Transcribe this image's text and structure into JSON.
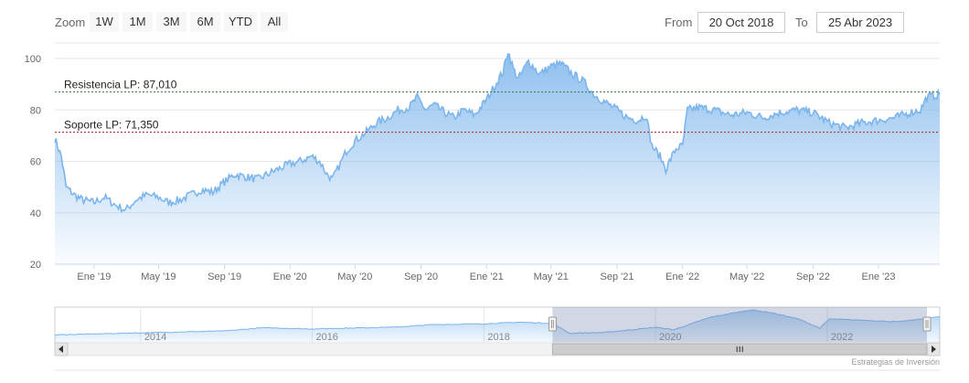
{
  "range_selector": {
    "zoom_label": "Zoom",
    "buttons": [
      "1W",
      "1M",
      "3M",
      "6M",
      "YTD",
      "All"
    ],
    "from_label": "From",
    "from_value": "20 Oct 2018",
    "to_label": "To",
    "to_value": "25 Abr 2023"
  },
  "credits": "Estrategias de Inversión",
  "colors": {
    "series_line": "#7cb5ec",
    "area_top": "#7cb5ec",
    "resistance_line": "#2e7d32",
    "support_line": "#b71c1c",
    "grid": "#e6e6e6"
  },
  "chart_data": {
    "type": "area",
    "x_start": "2018-10-20",
    "x_end": "2023-04-25",
    "ylim": [
      20,
      105
    ],
    "yticks": [
      20,
      40,
      60,
      80,
      100
    ],
    "x_tick_labels": [
      {
        "date": "2019-01-01",
        "label": "Ene '19"
      },
      {
        "date": "2019-05-01",
        "label": "May '19"
      },
      {
        "date": "2019-09-01",
        "label": "Sep '19"
      },
      {
        "date": "2020-01-01",
        "label": "Ene '20"
      },
      {
        "date": "2020-05-01",
        "label": "May '20"
      },
      {
        "date": "2020-09-01",
        "label": "Sep '20"
      },
      {
        "date": "2021-01-01",
        "label": "Ene '21"
      },
      {
        "date": "2021-05-01",
        "label": "May '21"
      },
      {
        "date": "2021-09-01",
        "label": "Sep '21"
      },
      {
        "date": "2022-01-01",
        "label": "Ene '22"
      },
      {
        "date": "2022-05-01",
        "label": "May '22"
      },
      {
        "date": "2022-09-01",
        "label": "Sep '22"
      },
      {
        "date": "2023-01-01",
        "label": "Ene '23"
      }
    ],
    "series": [
      {
        "points": [
          [
            "2018-10-20",
            69
          ],
          [
            "2018-11-01",
            62
          ],
          [
            "2018-11-10",
            50
          ],
          [
            "2018-11-25",
            47
          ],
          [
            "2018-12-10",
            45
          ],
          [
            "2019-01-01",
            44
          ],
          [
            "2019-01-20",
            46
          ],
          [
            "2019-02-10",
            43
          ],
          [
            "2019-03-01",
            41
          ],
          [
            "2019-03-20",
            45
          ],
          [
            "2019-04-10",
            47
          ],
          [
            "2019-05-01",
            46
          ],
          [
            "2019-05-20",
            44
          ],
          [
            "2019-06-10",
            45
          ],
          [
            "2019-07-01",
            47
          ],
          [
            "2019-07-20",
            49
          ],
          [
            "2019-08-10",
            48
          ],
          [
            "2019-09-01",
            52
          ],
          [
            "2019-09-20",
            55
          ],
          [
            "2019-10-10",
            54
          ],
          [
            "2019-11-01",
            53
          ],
          [
            "2019-11-20",
            55
          ],
          [
            "2019-12-10",
            57
          ],
          [
            "2020-01-01",
            59
          ],
          [
            "2020-01-20",
            60
          ],
          [
            "2020-02-10",
            62
          ],
          [
            "2020-02-25",
            60
          ],
          [
            "2020-03-10",
            55
          ],
          [
            "2020-03-20",
            53
          ],
          [
            "2020-04-01",
            58
          ],
          [
            "2020-04-15",
            64
          ],
          [
            "2020-05-01",
            68
          ],
          [
            "2020-05-20",
            71
          ],
          [
            "2020-06-10",
            75
          ],
          [
            "2020-07-01",
            77
          ],
          [
            "2020-07-20",
            80
          ],
          [
            "2020-08-10",
            81
          ],
          [
            "2020-08-25",
            85
          ],
          [
            "2020-09-10",
            80
          ],
          [
            "2020-09-25",
            82
          ],
          [
            "2020-10-15",
            79
          ],
          [
            "2020-11-01",
            77
          ],
          [
            "2020-11-20",
            80
          ],
          [
            "2020-12-10",
            78
          ],
          [
            "2021-01-01",
            84
          ],
          [
            "2021-01-15",
            89
          ],
          [
            "2021-02-01",
            95
          ],
          [
            "2021-02-10",
            103
          ],
          [
            "2021-02-20",
            96
          ],
          [
            "2021-03-01",
            92
          ],
          [
            "2021-03-20",
            99
          ],
          [
            "2021-04-10",
            94
          ],
          [
            "2021-05-01",
            97
          ],
          [
            "2021-05-20",
            98
          ],
          [
            "2021-06-10",
            94
          ],
          [
            "2021-07-01",
            91
          ],
          [
            "2021-07-20",
            86
          ],
          [
            "2021-08-10",
            83
          ],
          [
            "2021-09-01",
            80
          ],
          [
            "2021-09-20",
            77
          ],
          [
            "2021-10-10",
            76
          ],
          [
            "2021-10-25",
            78
          ],
          [
            "2021-11-05",
            66
          ],
          [
            "2021-11-20",
            62
          ],
          [
            "2021-12-01",
            57
          ],
          [
            "2021-12-10",
            61
          ],
          [
            "2021-12-20",
            65
          ],
          [
            "2022-01-01",
            66
          ],
          [
            "2022-01-10",
            80
          ],
          [
            "2022-02-01",
            81
          ],
          [
            "2022-03-01",
            80
          ],
          [
            "2022-04-01",
            78
          ],
          [
            "2022-05-01",
            79
          ],
          [
            "2022-06-01",
            77
          ],
          [
            "2022-07-01",
            79
          ],
          [
            "2022-08-01",
            80
          ],
          [
            "2022-09-01",
            79
          ],
          [
            "2022-10-01",
            75
          ],
          [
            "2022-11-01",
            73
          ],
          [
            "2022-12-01",
            75
          ],
          [
            "2023-01-01",
            76
          ],
          [
            "2023-02-01",
            77
          ],
          [
            "2023-03-01",
            79
          ],
          [
            "2023-03-20",
            80
          ],
          [
            "2023-04-01",
            85
          ],
          [
            "2023-04-25",
            86
          ]
        ]
      }
    ],
    "plot_lines": [
      {
        "value": 87.01,
        "label": "Resistencia LP: 87,010",
        "color": "#2e7d32"
      },
      {
        "value": 71.35,
        "label": "Soporte LP: 71,350",
        "color": "#b71c1c"
      }
    ],
    "navigator": {
      "x_start": "2013-01-01",
      "x_end": "2023-04-25",
      "selected_start": "2018-10-20",
      "selected_end": "2023-04-25",
      "x_tick_labels": [
        {
          "date": "2014-01-01",
          "label": "2014"
        },
        {
          "date": "2016-01-01",
          "label": "2016"
        },
        {
          "date": "2018-01-01",
          "label": "2018"
        },
        {
          "date": "2020-01-01",
          "label": "2020"
        },
        {
          "date": "2022-01-01",
          "label": "2022"
        }
      ],
      "points": [
        [
          "2013-01-01",
          40
        ],
        [
          "2014-01-01",
          45
        ],
        [
          "2015-01-01",
          50
        ],
        [
          "2015-06-01",
          58
        ],
        [
          "2016-01-01",
          55
        ],
        [
          "2017-01-01",
          60
        ],
        [
          "2017-06-01",
          66
        ],
        [
          "2018-01-01",
          68
        ],
        [
          "2018-06-01",
          72
        ],
        [
          "2018-10-20",
          69
        ],
        [
          "2019-01-01",
          44
        ],
        [
          "2019-06-01",
          46
        ],
        [
          "2020-01-01",
          59
        ],
        [
          "2020-03-20",
          53
        ],
        [
          "2020-08-25",
          85
        ],
        [
          "2021-02-10",
          103
        ],
        [
          "2021-05-01",
          97
        ],
        [
          "2021-09-01",
          80
        ],
        [
          "2021-12-01",
          57
        ],
        [
          "2022-01-10",
          80
        ],
        [
          "2022-06-01",
          77
        ],
        [
          "2022-11-01",
          73
        ],
        [
          "2023-04-25",
          86
        ]
      ]
    }
  }
}
